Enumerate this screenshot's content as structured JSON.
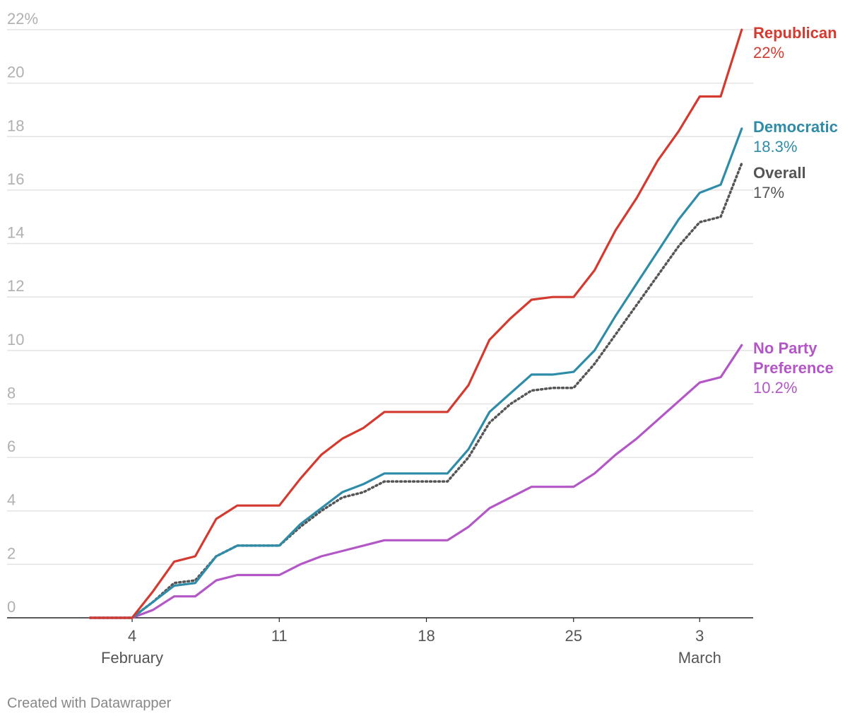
{
  "chart_data": {
    "type": "line",
    "title": "",
    "xlabel": "",
    "ylabel": "",
    "ylim": [
      0,
      22
    ],
    "yticks": [
      0,
      2,
      4,
      6,
      8,
      10,
      12,
      14,
      16,
      18,
      20,
      22
    ],
    "y_top_tick_label": "22%",
    "x_start_day": 2,
    "x_end_day": 31,
    "xticks": [
      {
        "day": 4,
        "label": "4",
        "sub": "February"
      },
      {
        "day": 11,
        "label": "11",
        "sub": ""
      },
      {
        "day": 18,
        "label": "18",
        "sub": ""
      },
      {
        "day": 25,
        "label": "25",
        "sub": ""
      },
      {
        "day": 31,
        "label": "3",
        "sub": "March"
      }
    ],
    "series": [
      {
        "name": "Republican",
        "end_label": "22%",
        "color": "#d43a2f",
        "style": "solid",
        "x": [
          2,
          3,
          4,
          5,
          6,
          7,
          8,
          9,
          10,
          11,
          12,
          13,
          14,
          15,
          16,
          17,
          18,
          19,
          20,
          21,
          22,
          23,
          24,
          25,
          26,
          27,
          28,
          29,
          30,
          31,
          32,
          33
        ],
        "values": [
          0,
          0,
          0,
          1.0,
          2.1,
          2.3,
          3.7,
          4.2,
          4.2,
          4.2,
          5.2,
          6.1,
          6.7,
          7.1,
          7.7,
          7.7,
          7.7,
          7.7,
          8.7,
          10.4,
          11.2,
          11.9,
          12.0,
          12.0,
          13.0,
          14.5,
          15.7,
          17.1,
          18.2,
          19.5,
          19.5,
          22.0
        ]
      },
      {
        "name": "Democratic",
        "end_label": "18.3%",
        "color": "#2e8ca8",
        "style": "solid",
        "x": [
          2,
          3,
          4,
          5,
          6,
          7,
          8,
          9,
          10,
          11,
          12,
          13,
          14,
          15,
          16,
          17,
          18,
          19,
          20,
          21,
          22,
          23,
          24,
          25,
          26,
          27,
          28,
          29,
          30,
          31,
          32,
          33
        ],
        "values": [
          0,
          0,
          0,
          0.6,
          1.2,
          1.3,
          2.3,
          2.7,
          2.7,
          2.7,
          3.5,
          4.1,
          4.7,
          5.0,
          5.4,
          5.4,
          5.4,
          5.4,
          6.3,
          7.7,
          8.4,
          9.1,
          9.1,
          9.2,
          10.0,
          11.3,
          12.5,
          13.7,
          14.9,
          15.9,
          16.2,
          18.3
        ]
      },
      {
        "name": "Overall",
        "end_label": "17%",
        "color": "#555555",
        "style": "dotted",
        "x": [
          2,
          3,
          4,
          5,
          6,
          7,
          8,
          9,
          10,
          11,
          12,
          13,
          14,
          15,
          16,
          17,
          18,
          19,
          20,
          21,
          22,
          23,
          24,
          25,
          26,
          27,
          28,
          29,
          30,
          31,
          32,
          33
        ],
        "values": [
          0,
          0,
          0,
          0.6,
          1.3,
          1.4,
          2.3,
          2.7,
          2.7,
          2.7,
          3.4,
          4.0,
          4.5,
          4.7,
          5.1,
          5.1,
          5.1,
          5.1,
          6.0,
          7.3,
          8.0,
          8.5,
          8.6,
          8.6,
          9.5,
          10.6,
          11.7,
          12.8,
          13.9,
          14.8,
          15.0,
          17.0
        ]
      },
      {
        "name": "No Party Preference",
        "name_lines": [
          "No Party",
          "Preference"
        ],
        "end_label": "10.2%",
        "color": "#b356c6",
        "style": "solid",
        "x": [
          2,
          3,
          4,
          5,
          6,
          7,
          8,
          9,
          10,
          11,
          12,
          13,
          14,
          15,
          16,
          17,
          18,
          19,
          20,
          21,
          22,
          23,
          24,
          25,
          26,
          27,
          28,
          29,
          30,
          31,
          32,
          33
        ],
        "values": [
          0,
          0,
          0,
          0.3,
          0.8,
          0.8,
          1.4,
          1.6,
          1.6,
          1.6,
          2.0,
          2.3,
          2.5,
          2.7,
          2.9,
          2.9,
          2.9,
          2.9,
          3.4,
          4.1,
          4.5,
          4.9,
          4.9,
          4.9,
          5.4,
          6.1,
          6.7,
          7.4,
          8.1,
          8.8,
          9.0,
          10.2
        ]
      }
    ]
  },
  "footer": {
    "credit": "Created with Datawrapper"
  }
}
